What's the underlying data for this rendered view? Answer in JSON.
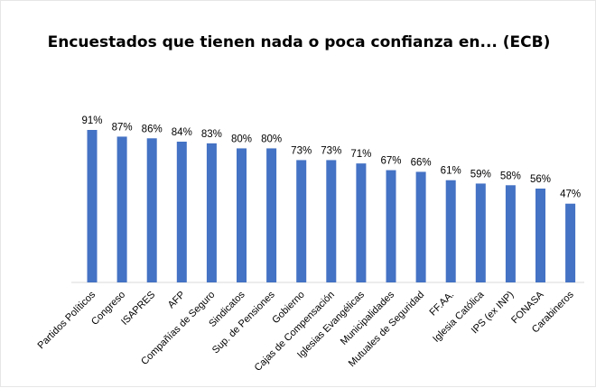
{
  "chart_data": {
    "type": "bar",
    "title": "Encuestados que tienen nada o  poca confianza en... (ECB)",
    "categories": [
      "Partidos Políticos",
      "Congreso",
      "ISAPRES",
      "AFP",
      "Compañías de Seguro",
      "Sindicatos",
      "Sup. de Pensiones",
      "Gobierno",
      "Cajas de Compensación",
      "Iglesias Evangélicas",
      "Municipalidades",
      "Mutuales de Seguridad",
      "FF.AA.",
      "Iglesia Católica",
      "IPS (ex INP)",
      "FONASA",
      "Carabineros"
    ],
    "values": [
      91,
      87,
      86,
      84,
      83,
      80,
      80,
      73,
      73,
      71,
      67,
      66,
      61,
      59,
      58,
      56,
      47
    ],
    "data_labels": [
      "91%",
      "87%",
      "86%",
      "84%",
      "83%",
      "80%",
      "80%",
      "73%",
      "73%",
      "71%",
      "67%",
      "66%",
      "61%",
      "59%",
      "58%",
      "56%",
      "47%"
    ],
    "ylim": [
      0,
      91
    ],
    "grid": false,
    "legend": "none",
    "bar_color": "#4472C4"
  }
}
